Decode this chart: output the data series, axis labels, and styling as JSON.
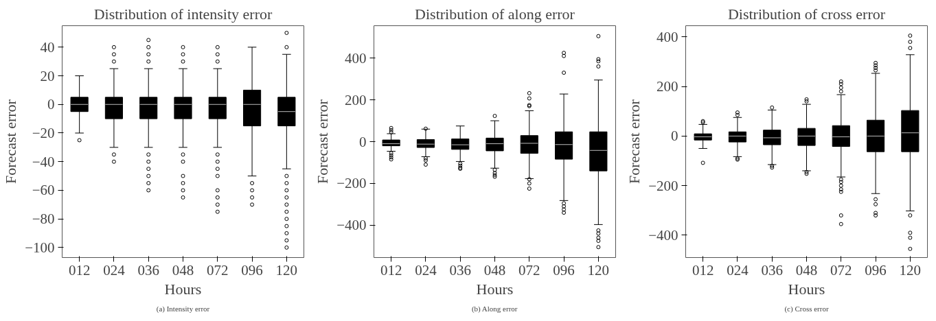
{
  "chart_data": [
    {
      "type": "box",
      "title": "Distribution of intensity error",
      "xlabel": "Hours",
      "ylabel": "Forecast error",
      "annotations": [
        "(a) Intensity error"
      ],
      "categories": [
        "012",
        "024",
        "036",
        "048",
        "072",
        "096",
        "120"
      ],
      "ylim": [
        -107,
        55
      ],
      "yticks": [
        -100,
        -80,
        -60,
        -40,
        -20,
        0,
        20,
        40
      ],
      "grid": false,
      "color": "#000000",
      "boxes": [
        {
          "low": -20,
          "q1": -5,
          "median": 0,
          "q3": 5,
          "high": 20,
          "outliers": [
            -25
          ]
        },
        {
          "low": -30,
          "q1": -10,
          "median": 0,
          "q3": 5,
          "high": 25,
          "outliers": [
            30,
            35,
            40,
            -35,
            -40
          ]
        },
        {
          "low": -30,
          "q1": -10,
          "median": 0,
          "q3": 5,
          "high": 25,
          "outliers": [
            30,
            35,
            40,
            45,
            -35,
            -40,
            -45,
            -50,
            -55,
            -60
          ]
        },
        {
          "low": -30,
          "q1": -10,
          "median": 0,
          "q3": 5,
          "high": 25,
          "outliers": [
            30,
            35,
            40,
            -35,
            -40,
            -50,
            -55,
            -60,
            -65
          ]
        },
        {
          "low": -30,
          "q1": -10,
          "median": 0,
          "q3": 5,
          "high": 25,
          "outliers": [
            30,
            35,
            40,
            -35,
            -40,
            -45,
            -50,
            -60,
            -65,
            -70,
            -75
          ]
        },
        {
          "low": -50,
          "q1": -15,
          "median": 0,
          "q3": 10,
          "high": 40,
          "outliers": [
            -55,
            -60,
            -65,
            -70
          ]
        },
        {
          "low": -45,
          "q1": -15,
          "median": -5,
          "q3": 5,
          "high": 35,
          "outliers": [
            40,
            50,
            -50,
            -55,
            -60,
            -65,
            -70,
            -75,
            -80,
            -85,
            -90,
            -95,
            -100
          ]
        }
      ]
    },
    {
      "type": "box",
      "title": "Distribution of along error",
      "xlabel": "Hours",
      "ylabel": "Forecast error",
      "annotations": [
        "(b) Along error"
      ],
      "categories": [
        "012",
        "024",
        "036",
        "048",
        "072",
        "096",
        "120"
      ],
      "ylim": [
        -555,
        555
      ],
      "yticks": [
        -400,
        -200,
        0,
        200,
        400
      ],
      "grid": false,
      "color": "#000000",
      "boxes": [
        {
          "low": -46,
          "q1": -20,
          "median": -10,
          "q3": 8,
          "high": 38,
          "outliers": [
            45,
            55,
            65,
            -55,
            -65,
            -75,
            -85
          ]
        },
        {
          "low": -72,
          "q1": -28,
          "median": -12,
          "q3": 10,
          "high": 60,
          "outliers": [
            62,
            -80,
            -90,
            -110
          ]
        },
        {
          "low": -95,
          "q1": -37,
          "median": -15,
          "q3": 13,
          "high": 75,
          "outliers": [
            -105,
            -115,
            -125,
            -130
          ]
        },
        {
          "low": -127,
          "q1": -44,
          "median": -10,
          "q3": 17,
          "high": 100,
          "outliers": [
            123,
            -135,
            -150,
            -160,
            -168
          ]
        },
        {
          "low": -177,
          "q1": -56,
          "median": -8,
          "q3": 29,
          "high": 148,
          "outliers": [
            170,
            175,
            207,
            232,
            -180,
            -200,
            -225
          ]
        },
        {
          "low": -282,
          "q1": -84,
          "median": -14,
          "q3": 47,
          "high": 228,
          "outliers": [
            330,
            410,
            425,
            -295,
            -310,
            -325,
            -340
          ]
        },
        {
          "low": -397,
          "q1": -140,
          "median": -42,
          "q3": 47,
          "high": 295,
          "outliers": [
            360,
            385,
            395,
            505,
            -425,
            -440,
            -460,
            -475,
            -505
          ]
        }
      ]
    },
    {
      "type": "box",
      "title": "Distribution of cross error",
      "xlabel": "Hours",
      "ylabel": "Forecast error",
      "annotations": [
        "(c) Cross error"
      ],
      "categories": [
        "012",
        "024",
        "036",
        "048",
        "072",
        "096",
        "120"
      ],
      "ylim": [
        -490,
        445
      ],
      "yticks": [
        -400,
        -200,
        0,
        200,
        400
      ],
      "grid": false,
      "color": "#000000",
      "boxes": [
        {
          "low": -50,
          "q1": -16,
          "median": -3,
          "q3": 9,
          "high": 47,
          "outliers": [
            55,
            60,
            -108
          ]
        },
        {
          "low": -83,
          "q1": -24,
          "median": 0,
          "q3": 17,
          "high": 75,
          "outliers": [
            85,
            95,
            -90,
            -95
          ]
        },
        {
          "low": -115,
          "q1": -35,
          "median": -7,
          "q3": 24,
          "high": 105,
          "outliers": [
            115,
            -120,
            -127
          ]
        },
        {
          "low": -140,
          "q1": -38,
          "median": 0,
          "q3": 31,
          "high": 128,
          "outliers": [
            140,
            148,
            -145,
            -152
          ]
        },
        {
          "low": -165,
          "q1": -42,
          "median": -3,
          "q3": 42,
          "high": 167,
          "outliers": [
            180,
            195,
            210,
            220,
            -175,
            -185,
            -200,
            -215,
            -225,
            -320,
            -355
          ]
        },
        {
          "low": -232,
          "q1": -63,
          "median": 0,
          "q3": 64,
          "high": 253,
          "outliers": [
            265,
            275,
            285,
            295,
            -255,
            -275,
            -310,
            -320
          ]
        },
        {
          "low": -302,
          "q1": -63,
          "median": 13,
          "q3": 103,
          "high": 328,
          "outliers": [
            355,
            380,
            405,
            -320,
            -390,
            -410,
            -455
          ]
        }
      ]
    }
  ]
}
